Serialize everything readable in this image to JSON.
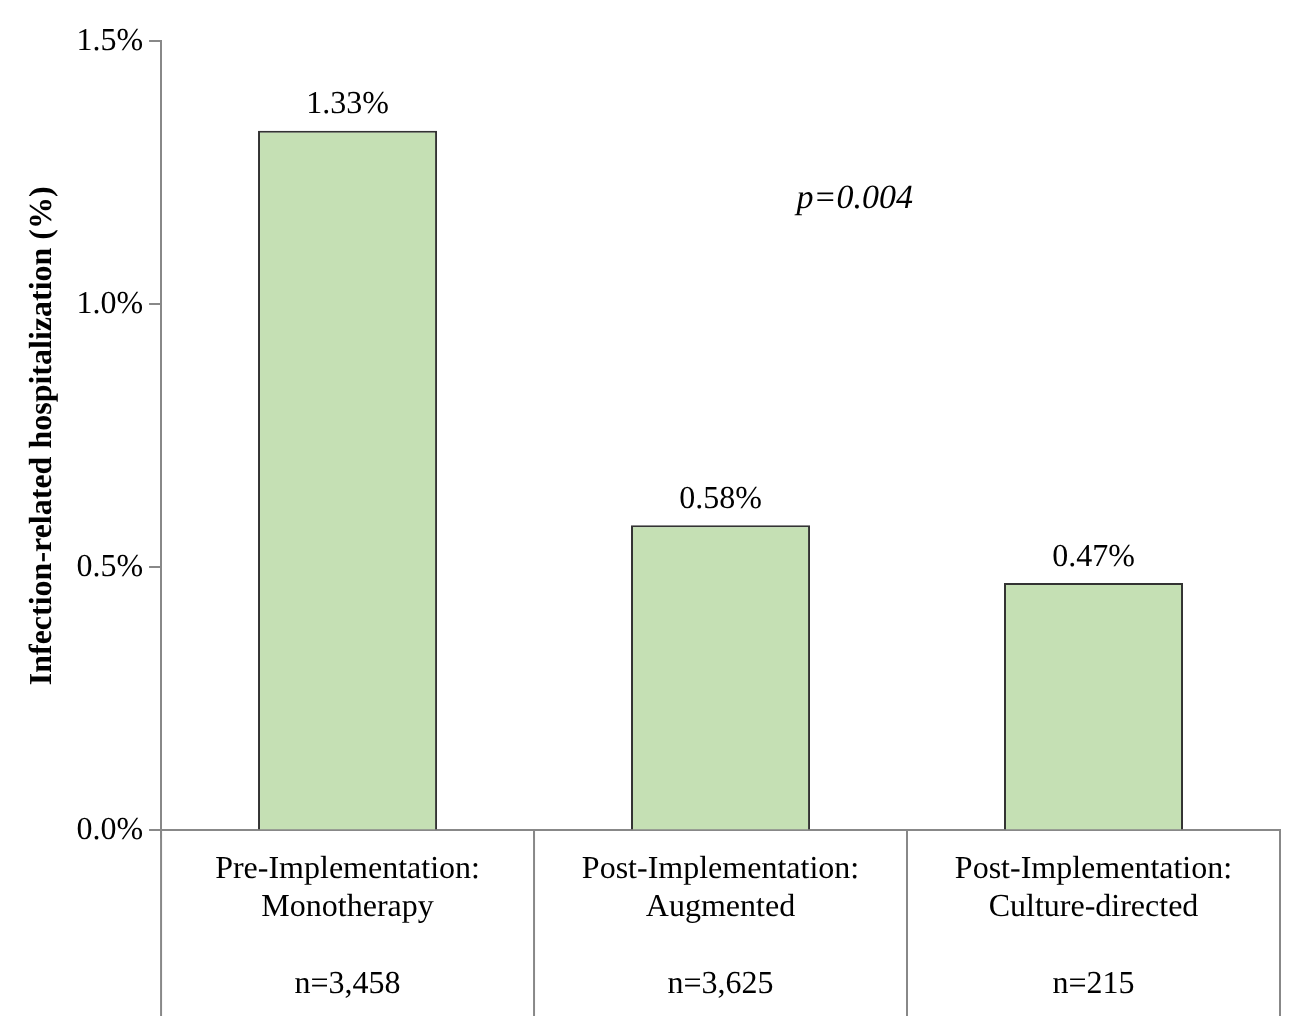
{
  "chart_data": {
    "type": "bar",
    "ylabel": "Infection-related hospitalization (%)",
    "categories": [
      "Pre-Implementation:\nMonotherapy\n\nn=3,458",
      "Post-Implementation:\nAugmented\n\nn=3,625",
      "Post-Implementation:\nCulture-directed\n\nn=215"
    ],
    "values": [
      1.33,
      0.58,
      0.47
    ],
    "color": "#c5e0b4",
    "value_labels": [
      "1.33%",
      "0.58%",
      "0.47%"
    ],
    "ylim": [
      0,
      1.5
    ],
    "yticks": [
      {
        "value": 0,
        "label": "0.0%"
      },
      {
        "value": 0.5,
        "label": "0.5%"
      },
      {
        "value": 1,
        "label": "1.0%"
      },
      {
        "value": 1.5,
        "label": "1.5%"
      }
    ],
    "annotations": [
      "p=0.004"
    ],
    "grid": false,
    "legend": false
  }
}
